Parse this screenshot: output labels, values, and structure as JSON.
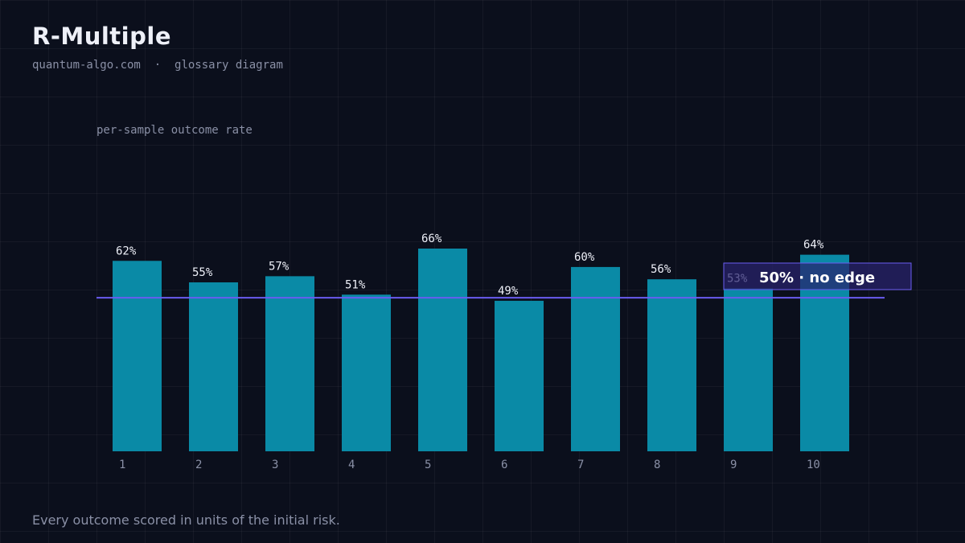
{
  "header": {
    "title": "R-Multiple",
    "site": "quantum-algo.com",
    "separator": "·",
    "kind": "glossary diagram"
  },
  "footer": {
    "caption": "Every outcome scored in units of the initial risk."
  },
  "colors": {
    "background": "#0b0f1c",
    "bar": "#0a8aa6",
    "reference_line": "#6a5cf0",
    "text": "#eef0f8",
    "muted": "#8a90a6"
  },
  "chart_data": {
    "type": "bar",
    "ylabel": "per-sample outcome rate",
    "categories": [
      "1",
      "2",
      "3",
      "4",
      "5",
      "6",
      "7",
      "8",
      "9",
      "10"
    ],
    "values": [
      62,
      55,
      57,
      51,
      66,
      49,
      60,
      56,
      53,
      64
    ],
    "value_suffix": "%",
    "ylim": [
      0,
      66
    ],
    "grid": true,
    "reference_line": {
      "value": 50,
      "label": "50% · no edge"
    }
  }
}
